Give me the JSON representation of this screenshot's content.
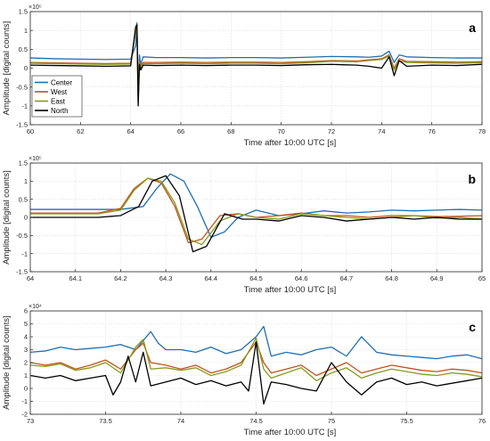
{
  "chart_data": [
    {
      "type": "line",
      "panel_label": "a",
      "xlabel": "Time after 10:00 UTC [s]",
      "ylabel": "Amplitude [digital counts]",
      "y_exponent": "×10⁵",
      "xlim": [
        60,
        78
      ],
      "ylim": [
        -1.5,
        1.5
      ],
      "xticks": [
        60,
        62,
        64,
        66,
        68,
        70,
        72,
        74,
        76,
        78
      ],
      "xtick_labels": [
        "60",
        "62",
        "64",
        "66",
        "68",
        "70",
        "72",
        "74",
        "76",
        "78"
      ],
      "yticks": [
        -1.5,
        -1,
        -0.5,
        0,
        0.5,
        1,
        1.5
      ],
      "ytick_labels": [
        "-1.5",
        "-1",
        "-0.5",
        "0",
        "0.5",
        "1",
        "1.5"
      ],
      "grid": true,
      "legend": {
        "placement": "bottom-left"
      },
      "series": [
        {
          "name": "Center",
          "color": "#1f6fb4",
          "x": [
            60,
            61,
            62,
            63,
            64,
            64.2,
            64.25,
            64.3,
            64.35,
            64.4,
            64.5,
            65,
            66,
            67,
            68,
            69,
            70,
            71,
            72,
            73,
            73.5,
            74,
            74.3,
            74.5,
            74.7,
            75,
            76,
            77,
            78
          ],
          "y": [
            0.27,
            0.25,
            0.24,
            0.23,
            0.24,
            0.6,
            1.2,
            -0.6,
            0.35,
            0.1,
            0.3,
            0.28,
            0.28,
            0.27,
            0.28,
            0.28,
            0.27,
            0.29,
            0.31,
            0.3,
            0.29,
            0.32,
            0.45,
            0.15,
            0.35,
            0.3,
            0.28,
            0.27,
            0.27
          ]
        },
        {
          "name": "West",
          "color": "#c0541c",
          "x": [
            60,
            61,
            62,
            63,
            64,
            64.2,
            64.25,
            64.3,
            64.35,
            64.4,
            64.5,
            65,
            66,
            67,
            68,
            69,
            70,
            71,
            72,
            73,
            73.5,
            74,
            74.3,
            74.5,
            74.7,
            75,
            76,
            77,
            78
          ],
          "y": [
            0.15,
            0.14,
            0.13,
            0.12,
            0.13,
            1.0,
            1.1,
            -0.9,
            0.2,
            0.05,
            0.15,
            0.15,
            0.16,
            0.15,
            0.16,
            0.16,
            0.15,
            0.17,
            0.2,
            0.19,
            0.22,
            0.25,
            0.35,
            0.0,
            0.25,
            0.18,
            0.17,
            0.16,
            0.17
          ]
        },
        {
          "name": "East",
          "color": "#8a9a1c",
          "x": [
            60,
            61,
            62,
            63,
            64,
            64.2,
            64.25,
            64.3,
            64.35,
            64.4,
            64.5,
            65,
            66,
            67,
            68,
            69,
            70,
            71,
            72,
            73,
            73.5,
            74,
            74.3,
            74.5,
            74.7,
            75,
            76,
            77,
            78
          ],
          "y": [
            0.13,
            0.12,
            0.11,
            0.1,
            0.11,
            1.0,
            1.05,
            -0.85,
            0.15,
            0.0,
            0.12,
            0.12,
            0.13,
            0.12,
            0.13,
            0.13,
            0.12,
            0.14,
            0.18,
            0.17,
            0.2,
            0.23,
            0.32,
            -0.05,
            0.2,
            0.15,
            0.14,
            0.13,
            0.14
          ]
        },
        {
          "name": "North",
          "color": "#000000",
          "x": [
            60,
            61,
            62,
            63,
            64,
            64.2,
            64.25,
            64.3,
            64.35,
            64.4,
            64.5,
            65,
            66,
            67,
            68,
            69,
            70,
            71,
            72,
            73,
            73.5,
            74,
            74.3,
            74.5,
            74.7,
            75,
            76,
            77,
            78
          ],
          "y": [
            0.08,
            0.07,
            0.06,
            0.05,
            0.06,
            1.1,
            1.15,
            -1.0,
            0.1,
            -0.05,
            0.08,
            0.07,
            0.08,
            0.07,
            0.08,
            0.08,
            0.07,
            0.09,
            0.1,
            0.08,
            0.05,
            0.0,
            0.3,
            -0.2,
            0.2,
            0.05,
            0.08,
            0.07,
            0.1
          ]
        }
      ]
    },
    {
      "type": "line",
      "panel_label": "b",
      "xlabel": "Time after 10:00 UTC [s]",
      "ylabel": "Amplitude [digital counts]",
      "y_exponent": "×10⁵",
      "xlim": [
        64,
        65
      ],
      "ylim": [
        -1.5,
        1.5
      ],
      "xticks": [
        64,
        64.1,
        64.2,
        64.3,
        64.4,
        64.5,
        64.6,
        64.7,
        64.8,
        64.9,
        65
      ],
      "xtick_labels": [
        "64",
        "64.1",
        "64.2",
        "64.3",
        "64.4",
        "64.5",
        "64.6",
        "64.7",
        "64.8",
        "64.9",
        "65"
      ],
      "yticks": [
        -1.5,
        -1,
        -0.5,
        0,
        0.5,
        1,
        1.5
      ],
      "ytick_labels": [
        "-1.5",
        "-1",
        "-0.5",
        "0",
        "0.5",
        "1",
        "1.5"
      ],
      "grid": true,
      "series": [
        {
          "name": "Center",
          "color": "#1f6fb4",
          "x": [
            64,
            64.1,
            64.2,
            64.25,
            64.28,
            64.31,
            64.34,
            64.37,
            64.4,
            64.43,
            64.46,
            64.5,
            64.55,
            64.6,
            64.65,
            64.7,
            64.75,
            64.8,
            64.85,
            64.9,
            64.95,
            65
          ],
          "y": [
            0.22,
            0.22,
            0.22,
            0.3,
            0.8,
            1.2,
            1.0,
            0.3,
            -0.55,
            -0.4,
            0.0,
            0.2,
            0.05,
            0.1,
            0.18,
            0.12,
            0.15,
            0.2,
            0.18,
            0.2,
            0.22,
            0.2
          ]
        },
        {
          "name": "West",
          "color": "#c0541c",
          "x": [
            64,
            64.1,
            64.15,
            64.2,
            64.23,
            64.26,
            64.29,
            64.32,
            64.35,
            64.38,
            64.42,
            64.46,
            64.5,
            64.55,
            64.6,
            64.65,
            64.7,
            64.75,
            64.8,
            64.85,
            64.9,
            64.95,
            65
          ],
          "y": [
            0.12,
            0.12,
            0.12,
            0.25,
            0.8,
            1.08,
            0.95,
            0.3,
            -0.7,
            -0.6,
            0.05,
            0.1,
            0.0,
            0.05,
            0.12,
            0.05,
            0.05,
            0.0,
            0.05,
            0.05,
            0.02,
            0.03,
            0.05
          ]
        },
        {
          "name": "East",
          "color": "#8a9a1c",
          "x": [
            64,
            64.1,
            64.15,
            64.2,
            64.23,
            64.26,
            64.29,
            64.32,
            64.35,
            64.38,
            64.42,
            64.46,
            64.5,
            64.55,
            64.6,
            64.65,
            64.7,
            64.75,
            64.8,
            64.85,
            64.9,
            64.95,
            65
          ],
          "y": [
            0.1,
            0.1,
            0.1,
            0.2,
            0.75,
            1.08,
            1.0,
            0.4,
            -0.6,
            -0.75,
            -0.1,
            0.1,
            0.0,
            -0.05,
            0.1,
            0.05,
            0.0,
            -0.05,
            0.0,
            0.05,
            -0.02,
            0.0,
            -0.05
          ]
        },
        {
          "name": "North",
          "color": "#000000",
          "x": [
            64,
            64.1,
            64.15,
            64.2,
            64.24,
            64.27,
            64.3,
            64.33,
            64.36,
            64.39,
            64.43,
            64.47,
            64.5,
            64.55,
            64.6,
            64.65,
            64.7,
            64.75,
            64.8,
            64.85,
            64.9,
            64.95,
            65
          ],
          "y": [
            0.0,
            0.0,
            0.0,
            0.05,
            0.3,
            1.0,
            1.15,
            0.6,
            -0.95,
            -0.8,
            0.1,
            -0.05,
            -0.05,
            -0.1,
            0.05,
            0.0,
            -0.1,
            -0.05,
            0.0,
            -0.05,
            0.0,
            -0.05,
            -0.05
          ]
        }
      ]
    },
    {
      "type": "line",
      "panel_label": "c",
      "xlabel": "Time after 10:00 UTC [s]",
      "ylabel": "Amplitude [digital counts]",
      "y_exponent": "×10⁴",
      "xlim": [
        73,
        76
      ],
      "ylim": [
        -2,
        6
      ],
      "xticks": [
        73,
        73.5,
        74,
        74.5,
        75,
        75.5,
        76
      ],
      "xtick_labels": [
        "73",
        "73.5",
        "74",
        "74.5",
        "75",
        "75.5",
        "76"
      ],
      "yticks": [
        -2,
        -1,
        0,
        1,
        2,
        3,
        4,
        5,
        6
      ],
      "ytick_labels": [
        "-2",
        "-1",
        "0",
        "1",
        "2",
        "3",
        "4",
        "5",
        "6"
      ],
      "grid": true,
      "series": [
        {
          "name": "Center",
          "color": "#1f6fb4",
          "x": [
            73,
            73.1,
            73.2,
            73.3,
            73.4,
            73.5,
            73.6,
            73.7,
            73.8,
            73.85,
            73.9,
            74,
            74.1,
            74.2,
            74.3,
            74.4,
            74.5,
            74.55,
            74.6,
            74.7,
            74.8,
            74.9,
            75,
            75.1,
            75.2,
            75.3,
            75.4,
            75.5,
            75.6,
            75.7,
            75.8,
            75.9,
            76
          ],
          "y": [
            2.8,
            2.9,
            3.2,
            3.0,
            3.1,
            3.2,
            3.4,
            3.0,
            4.4,
            3.5,
            3.0,
            3.0,
            2.8,
            3.2,
            2.7,
            3.0,
            4.0,
            4.8,
            2.5,
            2.8,
            2.6,
            3.0,
            3.2,
            2.5,
            4.0,
            2.8,
            2.6,
            2.5,
            2.4,
            2.3,
            2.5,
            2.6,
            2.3
          ]
        },
        {
          "name": "West",
          "color": "#c0541c",
          "x": [
            73,
            73.1,
            73.2,
            73.3,
            73.4,
            73.5,
            73.6,
            73.7,
            73.75,
            73.8,
            73.9,
            74,
            74.1,
            74.2,
            74.3,
            74.4,
            74.5,
            74.55,
            74.6,
            74.7,
            74.8,
            74.9,
            75,
            75.1,
            75.2,
            75.3,
            75.4,
            75.5,
            75.6,
            75.7,
            75.8,
            75.9,
            76
          ],
          "y": [
            2.0,
            1.8,
            2.0,
            1.5,
            1.8,
            2.2,
            1.5,
            3.0,
            3.5,
            2.0,
            1.8,
            1.5,
            1.8,
            1.2,
            1.5,
            2.0,
            3.6,
            2.0,
            1.2,
            1.5,
            1.8,
            1.0,
            1.5,
            2.0,
            1.2,
            1.5,
            1.8,
            1.6,
            1.4,
            1.3,
            1.5,
            1.4,
            1.2
          ]
        },
        {
          "name": "East",
          "color": "#8a9a1c",
          "x": [
            73,
            73.1,
            73.2,
            73.3,
            73.4,
            73.5,
            73.6,
            73.7,
            73.75,
            73.8,
            73.9,
            74,
            74.1,
            74.2,
            74.3,
            74.4,
            74.5,
            74.55,
            74.6,
            74.7,
            74.8,
            74.9,
            75,
            75.1,
            75.2,
            75.3,
            75.4,
            75.5,
            75.6,
            75.7,
            75.8,
            75.9,
            76
          ],
          "y": [
            1.8,
            1.7,
            1.9,
            1.4,
            1.6,
            2.0,
            1.2,
            3.2,
            3.8,
            1.5,
            1.6,
            1.4,
            1.6,
            1.0,
            1.3,
            1.8,
            3.9,
            1.5,
            0.8,
            1.2,
            1.6,
            0.6,
            1.2,
            1.6,
            0.8,
            1.2,
            1.5,
            1.3,
            1.1,
            1.0,
            1.2,
            1.1,
            0.9
          ]
        },
        {
          "name": "North",
          "color": "#000000",
          "x": [
            73,
            73.1,
            73.2,
            73.3,
            73.4,
            73.5,
            73.55,
            73.6,
            73.65,
            73.7,
            73.75,
            73.8,
            73.9,
            74,
            74.1,
            74.2,
            74.3,
            74.4,
            74.45,
            74.5,
            74.55,
            74.6,
            74.7,
            74.8,
            74.9,
            75,
            75.1,
            75.2,
            75.3,
            75.4,
            75.5,
            75.6,
            75.7,
            75.8,
            75.9,
            76
          ],
          "y": [
            1.0,
            0.8,
            1.0,
            0.6,
            0.8,
            1.0,
            -0.5,
            0.5,
            2.5,
            0.5,
            2.8,
            0.2,
            0.5,
            0.8,
            0.3,
            0.6,
            0.2,
            0.5,
            -0.2,
            3.6,
            -1.2,
            0.5,
            0.3,
            0.0,
            -0.2,
            2.0,
            0.5,
            -0.5,
            0.5,
            0.8,
            0.3,
            0.5,
            0.2,
            0.4,
            0.6,
            0.8
          ]
        }
      ]
    }
  ]
}
